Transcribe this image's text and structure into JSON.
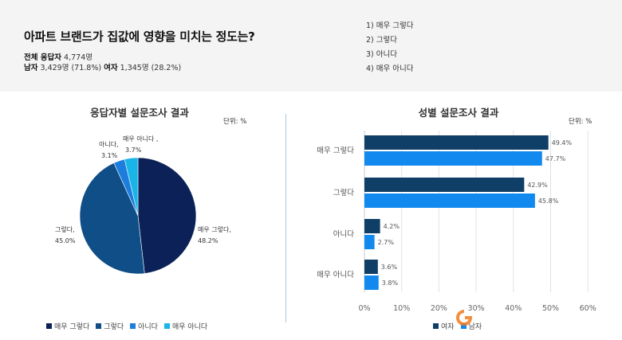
{
  "header": {
    "question": "아파트 브랜드가 집값에 영향을 미치는 정도는?",
    "total_label": "전체 응답자",
    "total_value": "4,774명",
    "male_label": "남자",
    "male_value": "3,429명 (71.8%)",
    "female_label": "여자",
    "female_value": "1,345명 (28.2%)",
    "options": [
      "1) 매우 그렇다",
      "2) 그렇다",
      "3) 아니다",
      "4) 매우 아니다"
    ]
  },
  "left_panel": {
    "title": "응답자별 설문조사 결과",
    "unit": "단위: %"
  },
  "right_panel": {
    "title": "성별 설문조사 결과",
    "unit": "단위: %"
  },
  "colors": {
    "very_yes": "#0b2157",
    "yes": "#0f4e86",
    "no": "#1c7ddc",
    "very_no": "#19b4e8",
    "female": "#0f3e66",
    "male": "#1289ee",
    "grid": "#dfe3e8"
  },
  "chart_data": [
    {
      "type": "pie",
      "title": "응답자별 설문조사 결과",
      "unit": "단위: %",
      "slices": [
        {
          "label": "매우 그렇다",
          "value": 48.2,
          "display_label": "매우 그렇다,",
          "display_value": "48.2%"
        },
        {
          "label": "그렇다",
          "value": 45.0,
          "display_label": "그렇다,",
          "display_value": "45.0%"
        },
        {
          "label": "아니다",
          "value": 3.1,
          "display_label": "아니다,",
          "display_value": "3.1%"
        },
        {
          "label": "매우 아니다",
          "value": 3.7,
          "display_label": "매우 아니다 ,",
          "display_value": "3.7%"
        }
      ],
      "legend": [
        "매우 그렇다",
        "그렇다",
        "아니다",
        "매우 아니다"
      ],
      "legend_position": "bottom"
    },
    {
      "type": "bar",
      "orientation": "horizontal",
      "title": "성별 설문조사 결과",
      "unit": "단위: %",
      "categories": [
        "매우 그렇다",
        "그렇다",
        "아니다",
        "매우 아니다"
      ],
      "series": [
        {
          "name": "여자",
          "values": [
            49.4,
            42.9,
            4.2,
            3.6
          ]
        },
        {
          "name": "남자",
          "values": [
            47.7,
            45.8,
            2.7,
            3.8
          ]
        }
      ],
      "xlim": [
        0,
        60
      ],
      "x_ticks": [
        "0%",
        "10%",
        "20%",
        "30%",
        "40%",
        "50%",
        "60%"
      ],
      "grid": true,
      "legend_position": "bottom"
    }
  ]
}
